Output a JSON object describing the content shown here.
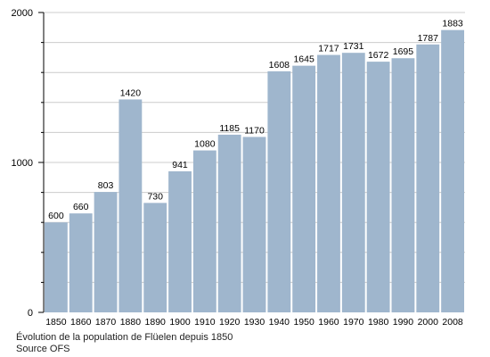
{
  "chart_data": {
    "type": "bar",
    "categories": [
      "1850",
      "1860",
      "1870",
      "1880",
      "1890",
      "1900",
      "1910",
      "1920",
      "1930",
      "1940",
      "1950",
      "1960",
      "1970",
      "1980",
      "1990",
      "2000",
      "2008"
    ],
    "values": [
      600,
      660,
      803,
      1420,
      730,
      941,
      1080,
      1185,
      1170,
      1608,
      1645,
      1717,
      1731,
      1672,
      1695,
      1787,
      1883
    ],
    "data_labels": [
      "600",
      "660",
      "803",
      "1420",
      "730",
      "941",
      "1080",
      "1185",
      "1170",
      "1608",
      "1645",
      "1717",
      "1731",
      "1672",
      "1695",
      "1787",
      "1883"
    ],
    "ylim": [
      0,
      2000
    ],
    "yticks": [
      0,
      1000,
      2000
    ],
    "ytick_labels": [
      "0",
      "1000",
      "2000"
    ],
    "grid": true,
    "bar_color": "#9fb6cd",
    "grid_color": "#cccccc",
    "caption_line1": "Évolution de la population de Flüelen depuis 1850",
    "caption_line2": "Source OFS"
  }
}
